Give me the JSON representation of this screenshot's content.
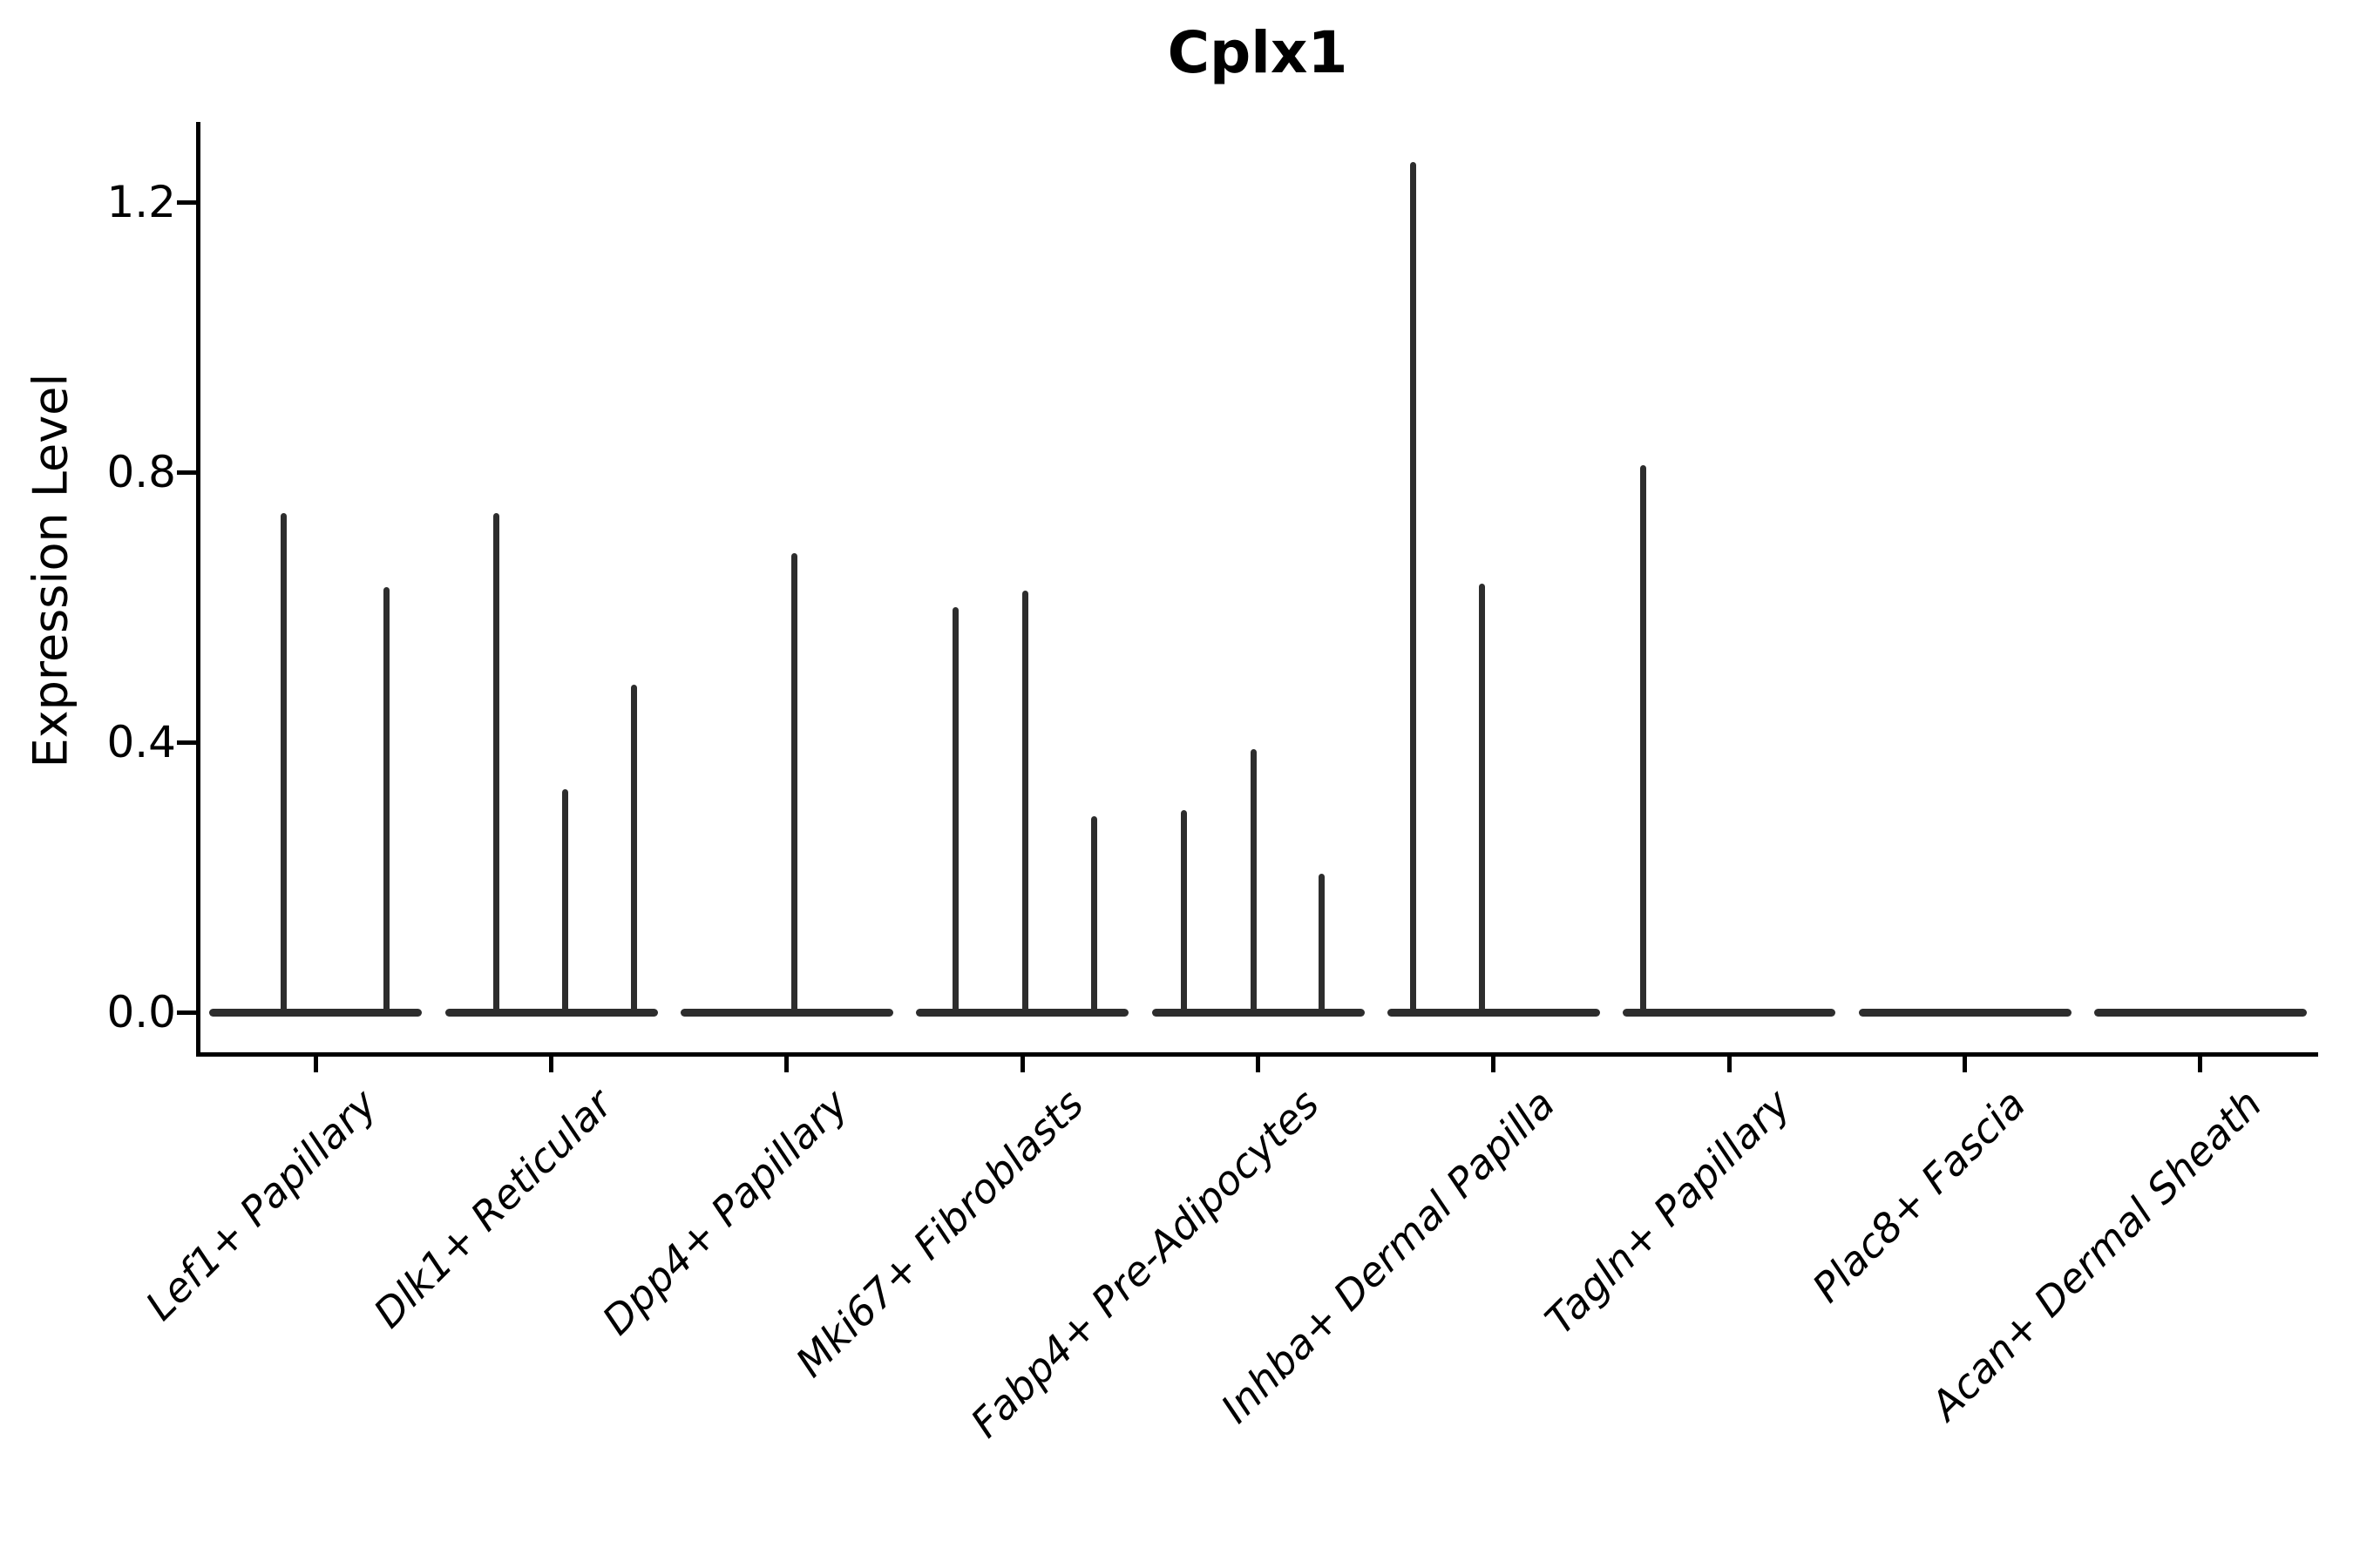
{
  "chart_data": {
    "type": "violin",
    "title": "Cplx1",
    "ylabel": "Expression Level",
    "xlabel": "",
    "yticks": [
      "0.0",
      "0.4",
      "0.8",
      "1.2"
    ],
    "ytick_values": [
      0.0,
      0.4,
      0.8,
      1.2
    ],
    "ylim": [
      -0.06,
      1.32
    ],
    "grid": false,
    "legend": "none",
    "stroke_color": "#2d2d2d",
    "axis_color": "#000000",
    "background_color": "#ffffff",
    "description": "Violin plot of Cplx1 expression per fibroblast cluster; violins collapse to a flat bar at 0 with thin density spikes at expressed values",
    "categories": [
      {
        "label": "Lef1+ Papillary",
        "spikes": [
          {
            "dx": -37,
            "value": 0.74
          },
          {
            "dx": 81,
            "value": 0.63
          }
        ]
      },
      {
        "label": "Dlk1+ Reticular",
        "spikes": [
          {
            "dx": -63,
            "value": 0.74
          },
          {
            "dx": 16,
            "value": 0.33
          },
          {
            "dx": 95,
            "value": 0.485
          }
        ]
      },
      {
        "label": "Dpp4+ Papillary",
        "spikes": [
          {
            "dx": 9,
            "value": 0.68
          }
        ]
      },
      {
        "label": "Mki67+ Fibroblasts",
        "spikes": [
          {
            "dx": -77,
            "value": 0.6
          },
          {
            "dx": 3,
            "value": 0.625
          },
          {
            "dx": 82,
            "value": 0.29
          }
        ]
      },
      {
        "label": "Fabp4+ Pre-Adipocytes",
        "spikes": [
          {
            "dx": -85,
            "value": 0.3
          },
          {
            "dx": -5,
            "value": 0.39
          },
          {
            "dx": 73,
            "value": 0.205
          }
        ]
      },
      {
        "label": "Inhba+ Dermal Papilla",
        "spikes": [
          {
            "dx": -92,
            "value": 1.26
          },
          {
            "dx": -13,
            "value": 0.635
          }
        ]
      },
      {
        "label": "Tagln+ Papillary",
        "spikes": [
          {
            "dx": -99,
            "value": 0.81
          }
        ]
      },
      {
        "label": "Plac8+ Fascia",
        "spikes": []
      },
      {
        "label": "Acan+ Dermal Sheath",
        "spikes": []
      }
    ]
  }
}
